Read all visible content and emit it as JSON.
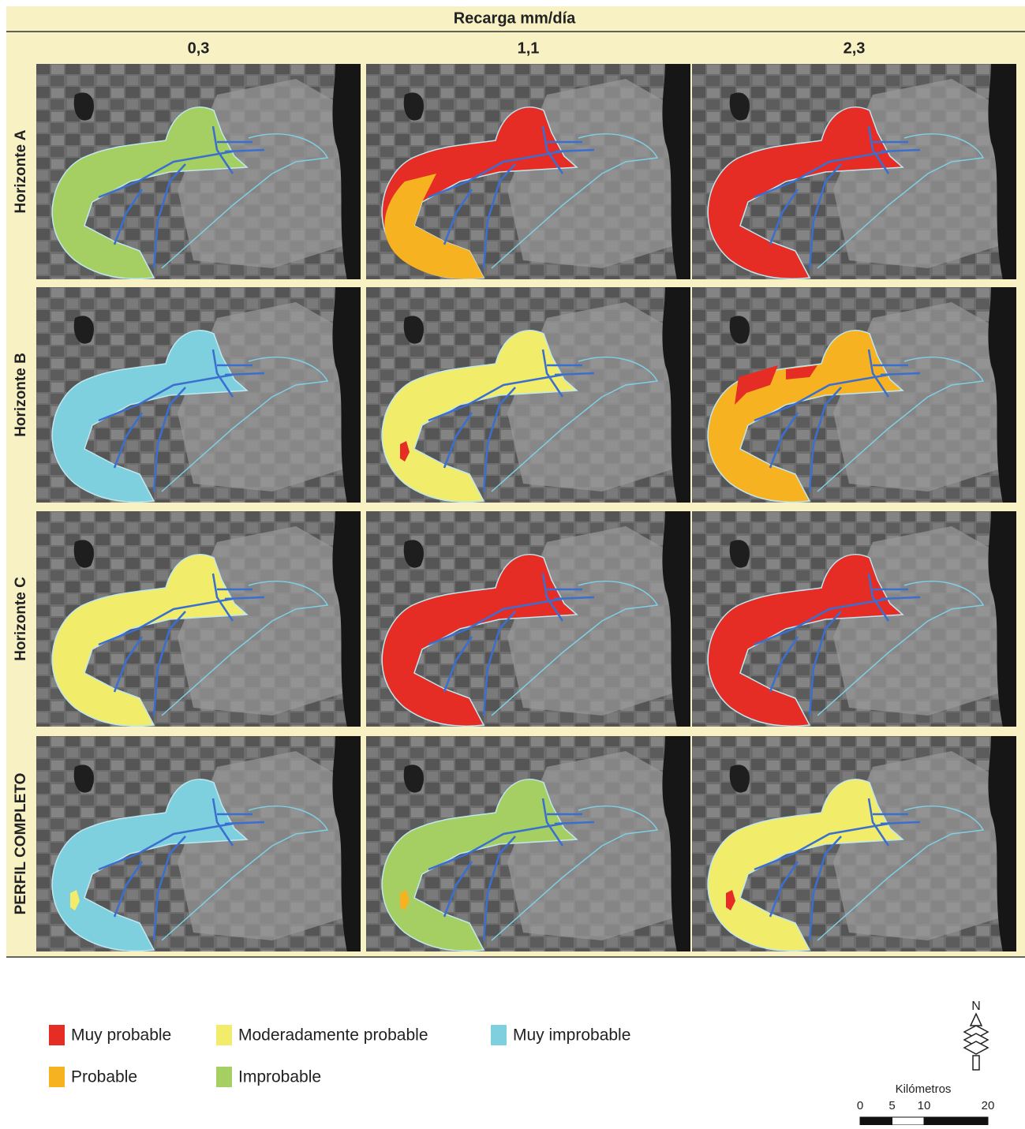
{
  "title": "Recarga mm/día",
  "columns": [
    "0,3",
    "1,1",
    "2,3"
  ],
  "rows": [
    "Horizonte A",
    "Horizonte B",
    "Horizonte C",
    "PERFIL COMPLETO"
  ],
  "cell_colors": [
    [
      [
        "#a5cf63"
      ],
      [
        "#e52d25",
        "#f7b222"
      ],
      [
        "#e52d25"
      ]
    ],
    [
      [
        "#7fd0df"
      ],
      [
        "#f2ec6b",
        "#e52d25"
      ],
      [
        "#f7b222",
        "#e52d25"
      ]
    ],
    [
      [
        "#f2ec6b"
      ],
      [
        "#e52d25"
      ],
      [
        "#e52d25"
      ]
    ],
    [
      [
        "#7fd0df",
        "#f2ec6b"
      ],
      [
        "#a5cf63",
        "#f7b222"
      ],
      [
        "#f2ec6b",
        "#e52d25"
      ]
    ]
  ],
  "legend": [
    {
      "label": "Muy probable",
      "color": "#e52d25"
    },
    {
      "label": "Moderadamente probable",
      "color": "#f2ec6b"
    },
    {
      "label": "Muy improbable",
      "color": "#7fd0df"
    },
    {
      "label": "Probable",
      "color": "#f7b222"
    },
    {
      "label": "Improbable",
      "color": "#a5cf63"
    }
  ],
  "north": "N",
  "scale": {
    "title": "Kilómetros",
    "ticks": [
      0,
      5,
      10,
      20
    ]
  }
}
